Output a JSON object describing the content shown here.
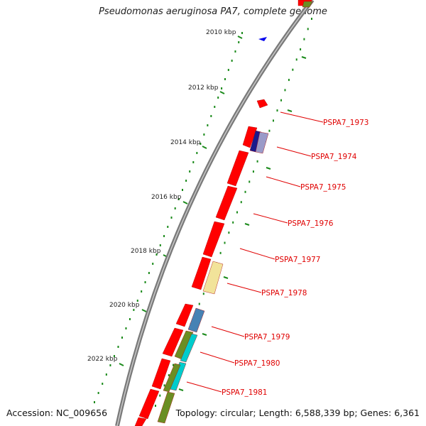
{
  "title": "Pseudomonas aeruginosa PA7, complete genome",
  "accession": "Accession: NC_009656",
  "topology": "Topology: circular; Length: 6,588,339 bp; Genes: 6,361",
  "colors": {
    "backbone": "#8a8a8a",
    "tick": "#1a8a1a",
    "gene_red": "#ff0000",
    "gene_navy": "#1a1a8c",
    "gene_yellow": "#f2e39a",
    "gene_steelblue": "#4682b4",
    "gene_olive": "#6b8e23",
    "gene_cyan": "#00cccc",
    "label": "#e00000",
    "strand_marker": "#0000ee"
  },
  "kbp_labels": [
    "2010 kbp",
    "2012 kbp",
    "2014 kbp",
    "2016 kbp",
    "2018 kbp",
    "2020 kbp",
    "2022 kbp"
  ],
  "gene_labels": [
    "PSPA7_1973",
    "PSPA7_1974",
    "PSPA7_1975",
    "PSPA7_1976",
    "PSPA7_1977",
    "PSPA7_1978",
    "PSPA7_1979",
    "PSPA7_1980",
    "PSPA7_1981"
  ]
}
